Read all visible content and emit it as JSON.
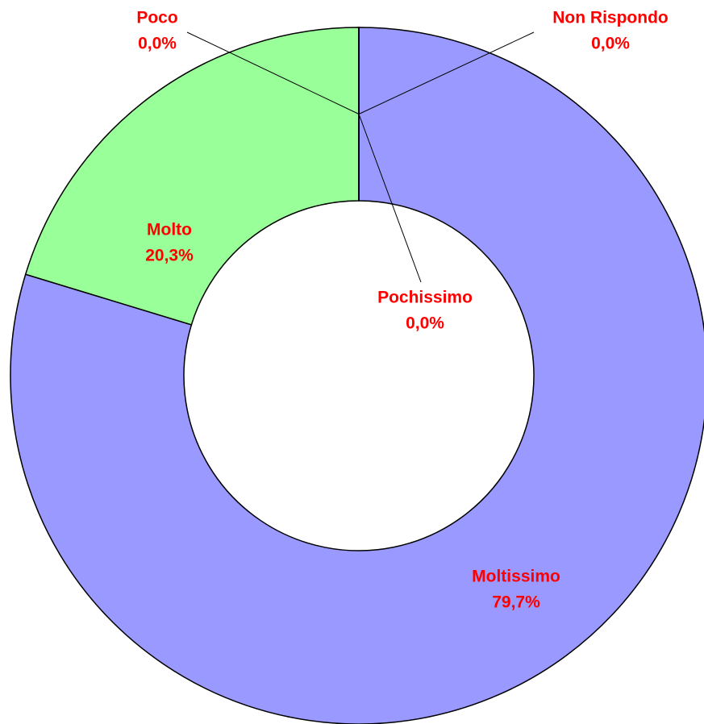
{
  "chart_data": {
    "type": "donut",
    "categories": [
      "Moltissimo",
      "Molto",
      "Poco",
      "Pochissimo",
      "Non Rispondo"
    ],
    "values": [
      79.7,
      20.3,
      0,
      0,
      0
    ],
    "value_labels": [
      "79,7%",
      "20,3%",
      "0,0%",
      "0,0%",
      "0,0%"
    ],
    "colors": [
      "#9999ff",
      "#99ff99",
      "#ffff99",
      "#ff9999",
      "#99ccff"
    ]
  }
}
